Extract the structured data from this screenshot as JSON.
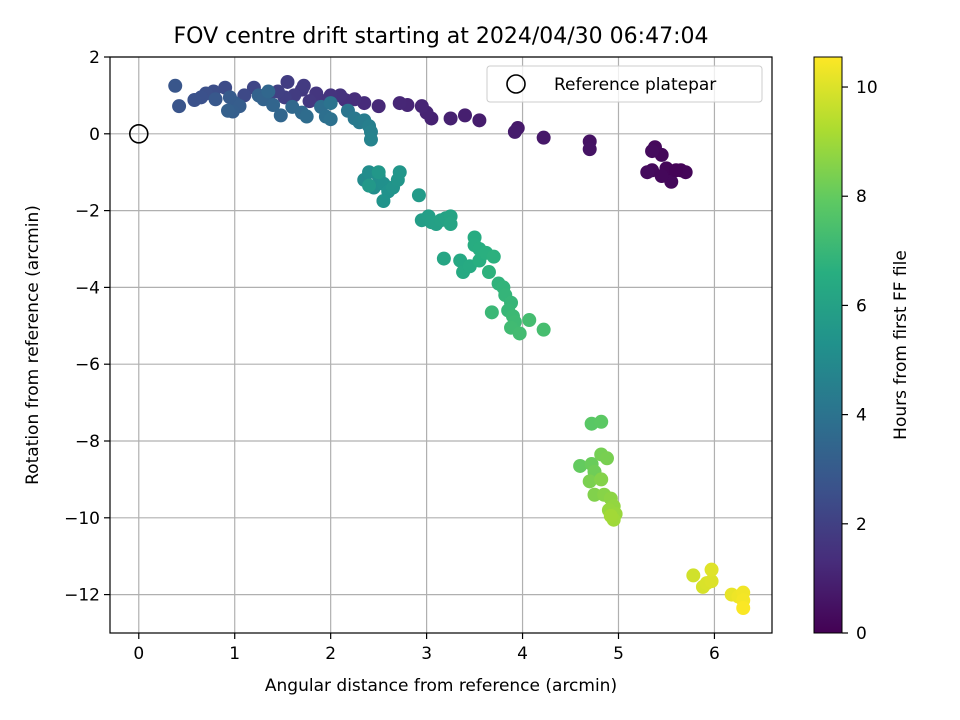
{
  "chart_data": {
    "type": "scatter",
    "title": "FOV centre drift starting at 2024/04/30 06:47:04",
    "xlabel": "Angular distance from reference (arcmin)",
    "ylabel": "Rotation from reference (arcmin)",
    "xlim": [
      -0.3,
      6.6
    ],
    "ylim": [
      -13.0,
      2.0
    ],
    "xticks": [
      0,
      1,
      2,
      3,
      4,
      5,
      6
    ],
    "yticks": [
      2,
      0,
      -2,
      -4,
      -6,
      -8,
      -10,
      -12
    ],
    "grid": true,
    "colormap": "viridis",
    "colorbar": {
      "label": "Hours from first FF file",
      "range": [
        0,
        10.55
      ],
      "ticks": [
        0,
        2,
        4,
        6,
        8,
        10
      ]
    },
    "legend": {
      "position": "top-right",
      "entries": [
        "Reference platepar"
      ]
    },
    "reference_point": {
      "x": 0,
      "y": 0,
      "label": "Reference platepar"
    },
    "points": [
      {
        "x": 5.55,
        "y": -1.0,
        "c": 0.1
      },
      {
        "x": 5.5,
        "y": -0.9,
        "c": 0.15
      },
      {
        "x": 5.55,
        "y": -1.25,
        "c": 0.2
      },
      {
        "x": 5.65,
        "y": -0.95,
        "c": 0.1
      },
      {
        "x": 5.35,
        "y": -0.95,
        "c": 0.25
      },
      {
        "x": 5.3,
        "y": -1.0,
        "c": 0.3
      },
      {
        "x": 5.45,
        "y": -0.55,
        "c": 0.2
      },
      {
        "x": 5.38,
        "y": -0.35,
        "c": 0.25
      },
      {
        "x": 5.35,
        "y": -0.45,
        "c": 0.3
      },
      {
        "x": 5.7,
        "y": -1.0,
        "c": 0.15
      },
      {
        "x": 5.45,
        "y": -1.1,
        "c": 0.2
      },
      {
        "x": 5.6,
        "y": -0.95,
        "c": 0.1
      },
      {
        "x": 4.7,
        "y": -0.2,
        "c": 0.5
      },
      {
        "x": 4.7,
        "y": -0.4,
        "c": 0.55
      },
      {
        "x": 4.22,
        "y": -0.1,
        "c": 0.7
      },
      {
        "x": 3.95,
        "y": 0.15,
        "c": 0.75
      },
      {
        "x": 3.92,
        "y": 0.05,
        "c": 0.8
      },
      {
        "x": 3.55,
        "y": 0.35,
        "c": 0.85
      },
      {
        "x": 3.4,
        "y": 0.48,
        "c": 0.9
      },
      {
        "x": 3.25,
        "y": 0.4,
        "c": 0.95
      },
      {
        "x": 3.05,
        "y": 0.4,
        "c": 1.0
      },
      {
        "x": 3.0,
        "y": 0.55,
        "c": 1.05
      },
      {
        "x": 2.95,
        "y": 0.72,
        "c": 1.1
      },
      {
        "x": 2.8,
        "y": 0.75,
        "c": 1.1
      },
      {
        "x": 2.72,
        "y": 0.8,
        "c": 1.15
      },
      {
        "x": 2.5,
        "y": 0.72,
        "c": 1.2
      },
      {
        "x": 2.35,
        "y": 0.8,
        "c": 1.3
      },
      {
        "x": 2.25,
        "y": 0.9,
        "c": 1.35
      },
      {
        "x": 2.15,
        "y": 0.88,
        "c": 1.4
      },
      {
        "x": 2.1,
        "y": 1.0,
        "c": 1.5
      },
      {
        "x": 2.0,
        "y": 1.0,
        "c": 1.55
      },
      {
        "x": 1.92,
        "y": 0.85,
        "c": 1.6
      },
      {
        "x": 1.85,
        "y": 1.05,
        "c": 1.65
      },
      {
        "x": 1.78,
        "y": 0.85,
        "c": 1.7
      },
      {
        "x": 1.7,
        "y": 1.15,
        "c": 1.75
      },
      {
        "x": 1.72,
        "y": 1.25,
        "c": 1.8
      },
      {
        "x": 1.62,
        "y": 1.0,
        "c": 1.85
      },
      {
        "x": 1.55,
        "y": 1.35,
        "c": 1.9
      },
      {
        "x": 1.52,
        "y": 0.95,
        "c": 1.95
      },
      {
        "x": 1.45,
        "y": 1.1,
        "c": 2.0
      },
      {
        "x": 1.35,
        "y": 0.95,
        "c": 2.1
      },
      {
        "x": 1.2,
        "y": 1.2,
        "c": 2.2
      },
      {
        "x": 1.1,
        "y": 1.0,
        "c": 2.3
      },
      {
        "x": 0.9,
        "y": 1.2,
        "c": 2.4
      },
      {
        "x": 0.78,
        "y": 1.1,
        "c": 2.5
      },
      {
        "x": 0.7,
        "y": 1.05,
        "c": 2.55
      },
      {
        "x": 0.65,
        "y": 0.95,
        "c": 2.6
      },
      {
        "x": 0.58,
        "y": 0.88,
        "c": 2.65
      },
      {
        "x": 0.42,
        "y": 0.72,
        "c": 2.75
      },
      {
        "x": 0.38,
        "y": 1.25,
        "c": 2.8
      },
      {
        "x": 0.8,
        "y": 0.9,
        "c": 2.9
      },
      {
        "x": 0.95,
        "y": 0.95,
        "c": 3.0
      },
      {
        "x": 1.0,
        "y": 0.8,
        "c": 3.05
      },
      {
        "x": 1.05,
        "y": 0.72,
        "c": 3.1
      },
      {
        "x": 0.98,
        "y": 0.58,
        "c": 3.15
      },
      {
        "x": 0.93,
        "y": 0.6,
        "c": 3.2
      },
      {
        "x": 1.25,
        "y": 1.0,
        "c": 3.3
      },
      {
        "x": 1.3,
        "y": 0.9,
        "c": 3.35
      },
      {
        "x": 1.4,
        "y": 0.75,
        "c": 3.4
      },
      {
        "x": 1.48,
        "y": 0.48,
        "c": 3.45
      },
      {
        "x": 1.35,
        "y": 1.1,
        "c": 3.5
      },
      {
        "x": 1.6,
        "y": 0.7,
        "c": 3.55
      },
      {
        "x": 1.7,
        "y": 0.55,
        "c": 3.6
      },
      {
        "x": 1.75,
        "y": 0.45,
        "c": 3.7
      },
      {
        "x": 1.9,
        "y": 0.7,
        "c": 3.8
      },
      {
        "x": 1.95,
        "y": 0.45,
        "c": 3.85
      },
      {
        "x": 2.0,
        "y": 0.38,
        "c": 3.9
      },
      {
        "x": 2.0,
        "y": 0.8,
        "c": 4.0
      },
      {
        "x": 2.18,
        "y": 0.6,
        "c": 4.1
      },
      {
        "x": 2.25,
        "y": 0.4,
        "c": 4.2
      },
      {
        "x": 2.3,
        "y": 0.3,
        "c": 4.3
      },
      {
        "x": 2.35,
        "y": 0.35,
        "c": 4.4
      },
      {
        "x": 2.4,
        "y": 0.2,
        "c": 4.5
      },
      {
        "x": 2.42,
        "y": 0.05,
        "c": 4.6
      },
      {
        "x": 2.42,
        "y": -0.15,
        "c": 4.7
      },
      {
        "x": 2.35,
        "y": -1.2,
        "c": 5.0
      },
      {
        "x": 2.4,
        "y": -1.0,
        "c": 5.1
      },
      {
        "x": 2.45,
        "y": -1.4,
        "c": 5.15
      },
      {
        "x": 2.5,
        "y": -1.1,
        "c": 5.2
      },
      {
        "x": 2.55,
        "y": -1.3,
        "c": 5.25
      },
      {
        "x": 2.6,
        "y": -1.5,
        "c": 5.3
      },
      {
        "x": 2.55,
        "y": -1.75,
        "c": 5.35
      },
      {
        "x": 2.65,
        "y": -1.4,
        "c": 5.4
      },
      {
        "x": 2.7,
        "y": -1.2,
        "c": 5.45
      },
      {
        "x": 2.72,
        "y": -1.0,
        "c": 5.5
      },
      {
        "x": 2.5,
        "y": -1.0,
        "c": 5.55
      },
      {
        "x": 2.4,
        "y": -1.35,
        "c": 5.6
      },
      {
        "x": 2.92,
        "y": -1.6,
        "c": 5.7
      },
      {
        "x": 2.95,
        "y": -2.25,
        "c": 5.8
      },
      {
        "x": 3.02,
        "y": -2.15,
        "c": 5.85
      },
      {
        "x": 3.05,
        "y": -2.3,
        "c": 5.9
      },
      {
        "x": 3.1,
        "y": -2.35,
        "c": 5.95
      },
      {
        "x": 3.15,
        "y": -2.25,
        "c": 6.0
      },
      {
        "x": 3.2,
        "y": -2.2,
        "c": 6.05
      },
      {
        "x": 3.25,
        "y": -2.15,
        "c": 6.1
      },
      {
        "x": 3.25,
        "y": -2.35,
        "c": 6.15
      },
      {
        "x": 3.18,
        "y": -3.25,
        "c": 6.2
      },
      {
        "x": 3.35,
        "y": -3.3,
        "c": 6.3
      },
      {
        "x": 3.38,
        "y": -3.6,
        "c": 6.35
      },
      {
        "x": 3.45,
        "y": -3.45,
        "c": 6.4
      },
      {
        "x": 3.5,
        "y": -2.7,
        "c": 6.45
      },
      {
        "x": 3.5,
        "y": -2.9,
        "c": 6.5
      },
      {
        "x": 3.55,
        "y": -3.0,
        "c": 6.55
      },
      {
        "x": 3.55,
        "y": -3.3,
        "c": 6.6
      },
      {
        "x": 3.62,
        "y": -3.1,
        "c": 6.65
      },
      {
        "x": 3.7,
        "y": -3.2,
        "c": 6.7
      },
      {
        "x": 3.65,
        "y": -3.6,
        "c": 6.75
      },
      {
        "x": 3.75,
        "y": -3.9,
        "c": 6.8
      },
      {
        "x": 3.8,
        "y": -4.0,
        "c": 6.85
      },
      {
        "x": 3.82,
        "y": -4.2,
        "c": 6.9
      },
      {
        "x": 3.88,
        "y": -4.4,
        "c": 6.95
      },
      {
        "x": 3.85,
        "y": -4.6,
        "c": 7.0
      },
      {
        "x": 3.68,
        "y": -4.65,
        "c": 7.05
      },
      {
        "x": 3.9,
        "y": -4.75,
        "c": 7.1
      },
      {
        "x": 3.92,
        "y": -4.9,
        "c": 7.15
      },
      {
        "x": 3.88,
        "y": -5.05,
        "c": 7.2
      },
      {
        "x": 3.97,
        "y": -5.2,
        "c": 7.25
      },
      {
        "x": 4.07,
        "y": -4.85,
        "c": 7.3
      },
      {
        "x": 4.22,
        "y": -5.1,
        "c": 7.35
      },
      {
        "x": 4.72,
        "y": -7.55,
        "c": 7.8
      },
      {
        "x": 4.82,
        "y": -7.5,
        "c": 7.85
      },
      {
        "x": 4.6,
        "y": -8.65,
        "c": 8.0
      },
      {
        "x": 4.72,
        "y": -8.6,
        "c": 8.1
      },
      {
        "x": 4.75,
        "y": -8.8,
        "c": 8.2
      },
      {
        "x": 4.82,
        "y": -8.35,
        "c": 8.3
      },
      {
        "x": 4.88,
        "y": -8.45,
        "c": 8.35
      },
      {
        "x": 4.7,
        "y": -9.05,
        "c": 8.4
      },
      {
        "x": 4.75,
        "y": -9.4,
        "c": 8.5
      },
      {
        "x": 4.82,
        "y": -9.0,
        "c": 8.55
      },
      {
        "x": 4.85,
        "y": -9.4,
        "c": 8.6
      },
      {
        "x": 4.92,
        "y": -9.5,
        "c": 8.7
      },
      {
        "x": 4.95,
        "y": -9.7,
        "c": 8.8
      },
      {
        "x": 4.9,
        "y": -9.8,
        "c": 8.85
      },
      {
        "x": 4.97,
        "y": -9.9,
        "c": 8.9
      },
      {
        "x": 4.95,
        "y": -10.05,
        "c": 9.0
      },
      {
        "x": 4.92,
        "y": -9.95,
        "c": 9.05
      },
      {
        "x": 5.78,
        "y": -11.5,
        "c": 9.8
      },
      {
        "x": 5.88,
        "y": -11.8,
        "c": 9.9
      },
      {
        "x": 5.92,
        "y": -11.7,
        "c": 9.95
      },
      {
        "x": 5.97,
        "y": -11.65,
        "c": 10.0
      },
      {
        "x": 5.97,
        "y": -11.35,
        "c": 10.05
      },
      {
        "x": 6.18,
        "y": -12.0,
        "c": 10.2
      },
      {
        "x": 6.25,
        "y": -12.05,
        "c": 10.3
      },
      {
        "x": 6.3,
        "y": -11.95,
        "c": 10.35
      },
      {
        "x": 6.3,
        "y": -12.15,
        "c": 10.4
      },
      {
        "x": 6.3,
        "y": -12.35,
        "c": 10.5
      }
    ]
  }
}
